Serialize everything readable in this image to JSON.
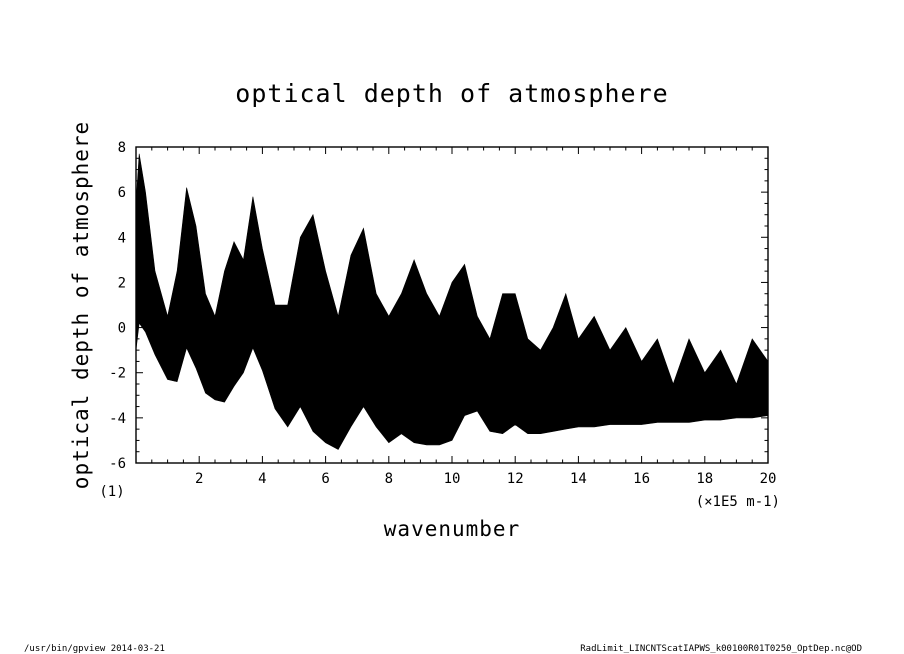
{
  "chart_data": {
    "type": "area",
    "title": "optical depth of atmosphere",
    "xlabel": "wavenumber",
    "ylabel": "optical depth of atmosphere",
    "xlim": [
      0,
      20
    ],
    "ylim": [
      -6,
      8
    ],
    "x_ticks": [
      2,
      4,
      6,
      8,
      10,
      12,
      14,
      16,
      18,
      20
    ],
    "y_ticks": [
      -6,
      -4,
      -2,
      0,
      2,
      4,
      6,
      8
    ],
    "x_tick_labels": [
      "2",
      "4",
      "6",
      "8",
      "10",
      "12",
      "14",
      "16",
      "18",
      "20"
    ],
    "y_tick_labels": [
      "-6",
      "-4",
      "-2",
      "0",
      "2",
      "4",
      "6",
      "8"
    ],
    "x_origin_note": "(1)",
    "x_unit_note": "(×1E5 m-1)",
    "grid": false,
    "legend": "none",
    "color": "#000000",
    "series": [
      {
        "x": [
          0.0,
          0.1,
          0.3,
          0.6,
          1.0,
          1.3,
          1.6,
          1.9,
          2.2,
          2.5,
          2.8,
          3.1,
          3.4,
          3.7,
          4.0,
          4.4,
          4.8,
          5.2,
          5.6,
          6.0,
          6.4,
          6.8,
          7.2,
          7.6,
          8.0,
          8.4,
          8.8,
          9.2,
          9.6,
          10.0,
          10.4,
          10.8,
          11.2,
          11.6,
          12.0,
          12.4,
          12.8,
          13.2,
          13.6,
          14.0,
          14.5,
          15.0,
          15.5,
          16.0,
          16.5,
          17.0,
          17.5,
          18.0,
          18.5,
          19.0,
          19.5,
          20.0
        ],
        "lower": [
          -1.0,
          0.2,
          -0.2,
          -1.2,
          -2.3,
          -2.4,
          -0.9,
          -1.8,
          -2.9,
          -3.2,
          -3.3,
          -2.6,
          -2.0,
          -0.9,
          -1.9,
          -3.6,
          -4.4,
          -3.5,
          -4.6,
          -5.1,
          -5.4,
          -4.4,
          -3.5,
          -4.4,
          -5.1,
          -4.7,
          -5.1,
          -5.2,
          -5.2,
          -5.0,
          -3.9,
          -3.7,
          -4.6,
          -4.7,
          -4.3,
          -4.7,
          -4.7,
          -4.6,
          -4.5,
          -4.4,
          -4.4,
          -4.3,
          -4.3,
          -4.3,
          -4.2,
          -4.2,
          -4.2,
          -4.1,
          -4.1,
          -4.0,
          -4.0,
          -3.9
        ],
        "upper": [
          5.5,
          7.7,
          6.0,
          2.5,
          0.5,
          2.5,
          6.2,
          4.5,
          1.5,
          0.5,
          2.5,
          3.8,
          3.0,
          5.8,
          3.5,
          1.0,
          1.0,
          4.0,
          5.0,
          2.5,
          0.5,
          3.2,
          4.4,
          1.5,
          0.5,
          1.5,
          3.0,
          1.5,
          0.5,
          2.0,
          2.8,
          0.5,
          -0.5,
          1.5,
          1.5,
          -0.5,
          -1.0,
          0.0,
          1.5,
          -0.5,
          0.5,
          -1.0,
          0.0,
          -1.5,
          -0.5,
          -2.5,
          -0.5,
          -2.0,
          -1.0,
          -2.5,
          -0.5,
          -1.5
        ]
      }
    ]
  },
  "footer": {
    "left": "/usr/bin/gpview   2014-03-21",
    "right": "RadLimit_LINCNTScatIAPWS_k00100R01T0250_OptDep.nc@OD"
  }
}
